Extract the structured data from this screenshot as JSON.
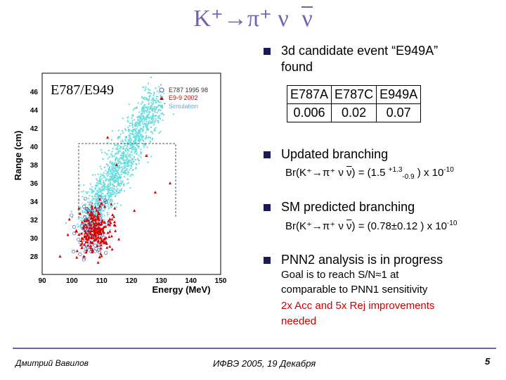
{
  "title": {
    "main": "K⁺→π⁺ ν ",
    "nubar": "ν"
  },
  "bullets": [
    {
      "text": "3d candidate event “E949A”",
      "text2": "found"
    },
    {
      "text": "Updated branching"
    },
    {
      "text": "SM predicted branching"
    },
    {
      "text": "PNN2 analysis is in progress"
    }
  ],
  "branching_table": {
    "headers": [
      "E787A",
      "E787C",
      "E949A"
    ],
    "values": [
      "0.006",
      "0.02",
      "0.07"
    ]
  },
  "updated_br": {
    "prefix": "Br(K⁺→π⁺ ν ",
    "nubar": "ν",
    "mid": ") = (1.5 ",
    "sup": "+1.3",
    "sub": "-0.9",
    "suffix": " ) x 10",
    "exp": "-10"
  },
  "sm_br": {
    "prefix": "Br(K⁺→π⁺ ν ",
    "nubar": "ν",
    "mid": ") = (0.78±0.12 ) x 10",
    "exp": "-10"
  },
  "pnn2": {
    "goal1": "Goal is to reach S/N≈1 at",
    "goal2": "comparable to PNN1 sensitivity",
    "red1": "2x Acc and 5x Rej improvements",
    "red2": "needed"
  },
  "plot": {
    "label": "E787/E949",
    "ylabel": "Range (cm)",
    "xlabel": "Energy (MeV)",
    "legend": [
      "E787 1995 98",
      "E9-9 2002",
      "Simulation"
    ],
    "yticks": [
      "28",
      "30",
      "32",
      "34",
      "36",
      "38",
      "40",
      "42",
      "44",
      "46"
    ],
    "xticks": [
      "90",
      "100",
      "110",
      "120",
      "130",
      "140",
      "150"
    ],
    "colors": {
      "e787": "#5555aa",
      "e949": "#dd0000",
      "sim": "#66dddd"
    }
  },
  "footer": {
    "author": "Дмитрий Вавилов",
    "event": "ИФВЭ 2005, 19 Декабря",
    "page": "5"
  }
}
